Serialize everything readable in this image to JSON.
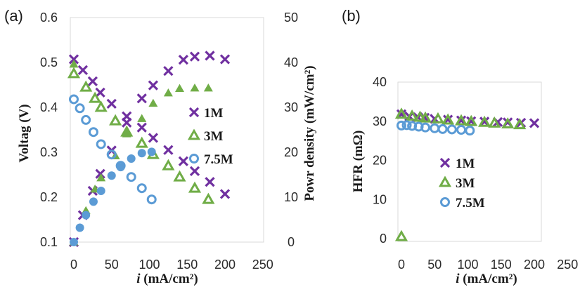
{
  "chart_data": [
    {
      "panel": "(a)",
      "type": "scatter",
      "xlabel_italic": "i",
      "xlabel_rest": " (mA/cm²)",
      "ylabel": "Voltag (V)",
      "y2label": "Powr density (mW/cm²)",
      "x_ticks": [
        "0",
        "50",
        "100",
        "150",
        "200",
        "250"
      ],
      "y_ticks": [
        "0.1",
        "0.2",
        "0.3",
        "0.4",
        "0.5",
        "0.6"
      ],
      "y2_ticks": [
        "0",
        "10",
        "20",
        "30",
        "40",
        "50"
      ],
      "xlim": [
        -10,
        250
      ],
      "ylim": [
        0.1,
        0.6
      ],
      "y2lim": [
        0,
        50
      ],
      "legend": [
        "1M",
        "3M",
        "7.5M"
      ],
      "legend_position": "right",
      "grid": false,
      "series": [
        {
          "name": "1M",
          "marker": "x",
          "color": "#7030a0",
          "axis": "left",
          "kind": "voltage",
          "x": [
            0,
            12,
            25,
            35,
            50,
            70,
            90,
            105,
            125,
            145,
            160,
            180,
            200
          ],
          "y": [
            0.507,
            0.483,
            0.458,
            0.433,
            0.408,
            0.38,
            0.355,
            0.332,
            0.305,
            0.28,
            0.258,
            0.234,
            0.207
          ]
        },
        {
          "name": "1M",
          "marker": "x",
          "color": "#7030a0",
          "axis": "right",
          "kind": "power",
          "x": [
            0,
            12,
            25,
            35,
            50,
            70,
            90,
            105,
            125,
            145,
            160,
            180,
            200
          ],
          "y": [
            0,
            6.0,
            11.4,
            15.2,
            20.4,
            26.6,
            32.0,
            34.9,
            38.1,
            40.6,
            41.3,
            41.5,
            40.7
          ]
        },
        {
          "name": "3M",
          "marker": "triangle",
          "color": "#70ad47",
          "axis": "left",
          "kind": "voltage",
          "x": [
            0,
            16,
            28,
            36,
            55,
            70,
            90,
            105,
            125,
            140,
            160,
            178
          ],
          "y": [
            0.475,
            0.445,
            0.42,
            0.4,
            0.37,
            0.345,
            0.32,
            0.295,
            0.27,
            0.245,
            0.22,
            0.195
          ]
        },
        {
          "name": "3M",
          "marker": "triangle",
          "color": "#70ad47",
          "axis": "right",
          "kind": "power",
          "x": [
            0,
            0,
            16,
            28,
            36,
            55,
            70,
            90,
            105,
            125,
            140,
            160,
            178
          ],
          "y": [
            0,
            39.6,
            7.0,
            11.8,
            14.3,
            19.2,
            24.1,
            27.5,
            30.9,
            33.2,
            34.2,
            34.3,
            34.3
          ]
        },
        {
          "name": "7.5M",
          "marker": "circle",
          "color": "#5b9bd5",
          "axis": "left",
          "kind": "voltage",
          "x": [
            0,
            8,
            16,
            26,
            36,
            50,
            62,
            76,
            90,
            103
          ],
          "y": [
            0.418,
            0.398,
            0.372,
            0.345,
            0.318,
            0.295,
            0.27,
            0.245,
            0.22,
            0.195
          ]
        },
        {
          "name": "7.5M",
          "marker": "circle",
          "color": "#5b9bd5",
          "axis": "right",
          "kind": "power",
          "x": [
            0,
            8,
            16,
            26,
            36,
            50,
            62,
            76,
            90,
            103
          ],
          "y": [
            0,
            3.2,
            6.0,
            9.0,
            11.4,
            14.8,
            16.7,
            18.6,
            19.8,
            20.1
          ]
        }
      ]
    },
    {
      "panel": "(b)",
      "type": "scatter",
      "xlabel_italic": "i",
      "xlabel_rest": " (mA/cm²)",
      "ylabel": "HFR (mΩ)",
      "x_ticks": [
        "0",
        "50",
        "100",
        "150",
        "200",
        "250"
      ],
      "y_ticks": [
        "0",
        "10",
        "20",
        "30",
        "40"
      ],
      "xlim": [
        -6,
        200
      ],
      "ylim": [
        0,
        40
      ],
      "legend": [
        "1M",
        "3M",
        "7.5M"
      ],
      "legend_position": "left",
      "grid": false,
      "series": [
        {
          "name": "1M",
          "marker": "x",
          "color": "#7030a0",
          "x": [
            0,
            12,
            25,
            35,
            50,
            70,
            90,
            105,
            125,
            145,
            160,
            180,
            200
          ],
          "y": [
            31.8,
            31.2,
            31.0,
            30.9,
            30.6,
            30.4,
            30.2,
            30.0,
            29.9,
            29.8,
            29.7,
            29.6,
            29.5
          ]
        },
        {
          "name": "3M",
          "marker": "triangle",
          "color": "#70ad47",
          "x": [
            0,
            0,
            16,
            28,
            36,
            55,
            70,
            90,
            105,
            125,
            140,
            160,
            178
          ],
          "y": [
            0.5,
            31.8,
            31.3,
            31.0,
            30.8,
            30.6,
            30.3,
            30.1,
            29.9,
            29.7,
            29.5,
            29.3,
            29.1
          ]
        },
        {
          "name": "7.5M",
          "marker": "circle",
          "color": "#5b9bd5",
          "x": [
            0,
            8,
            16,
            26,
            36,
            50,
            62,
            76,
            90,
            103
          ],
          "y": [
            28.9,
            29.0,
            28.8,
            28.6,
            28.4,
            28.2,
            28.0,
            27.9,
            27.8,
            27.6
          ]
        }
      ]
    }
  ]
}
